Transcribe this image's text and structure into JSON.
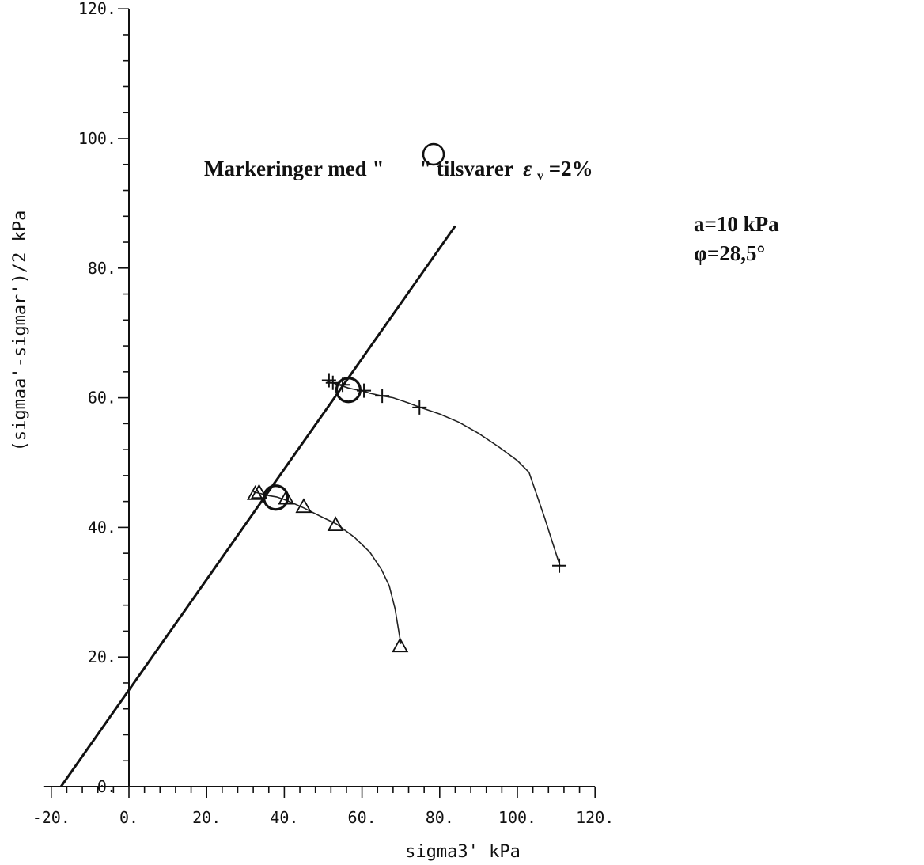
{
  "chart_data": {
    "type": "line",
    "xlabel": "sigma3' kPa",
    "ylabel": "(sigmaa'-sigmar')/2 kPa",
    "xlim": [
      -20,
      120
    ],
    "ylim": [
      0,
      120
    ],
    "x_ticks": [
      -20,
      0,
      20,
      40,
      60,
      80,
      100,
      120
    ],
    "x_tick_labels": [
      "-20.",
      "0.",
      "20.",
      "40.",
      "60.",
      "80.",
      "100.",
      "120."
    ],
    "y_ticks": [
      0,
      20,
      40,
      60,
      80,
      100,
      120
    ],
    "y_tick_labels": [
      "0.",
      "20.",
      "40.",
      "60.",
      "80.",
      "100.",
      "120."
    ],
    "grid": false,
    "annotations": {
      "marker_note_prefix": "Markeringer med \"",
      "marker_note_suffix": "\" tilsvarer",
      "strain_symbol": "ε",
      "strain_subscript": "v",
      "strain_value": "=2%",
      "attraction": "a=10 kPa",
      "friction_angle": "φ=28,5°"
    },
    "failure_line": {
      "a_kPa": 10,
      "phi_deg": 28.5,
      "points": [
        [
          -17.5,
          0
        ],
        [
          84,
          86.5
        ]
      ]
    },
    "series": [
      {
        "marker": "+",
        "points": [
          [
            51,
            62.5
          ],
          [
            53,
            62.2
          ],
          [
            55,
            61.8
          ],
          [
            56.5,
            61.5
          ],
          [
            58,
            61.3
          ],
          [
            60.5,
            61.0
          ],
          [
            62,
            60.7
          ],
          [
            65,
            60.3
          ],
          [
            68,
            60.0
          ],
          [
            72,
            59.2
          ],
          [
            75,
            58.5
          ],
          [
            80,
            57.5
          ],
          [
            85,
            56.2
          ],
          [
            90,
            54.5
          ],
          [
            95,
            52.5
          ],
          [
            100,
            50.3
          ],
          [
            103,
            48.5
          ],
          [
            107,
            41.5
          ],
          [
            111,
            34
          ]
        ],
        "marker_points": [
          [
            51.5,
            62.7
          ],
          [
            52.5,
            62.3
          ],
          [
            55,
            62.0
          ],
          [
            60.5,
            61.1
          ],
          [
            65.2,
            60.3
          ],
          [
            74.8,
            58.5
          ],
          [
            110.8,
            34.1
          ]
        ],
        "strain_2pct_point": [
          56.5,
          61.2
        ]
      },
      {
        "marker": "triangle",
        "points": [
          [
            32,
            45.5
          ],
          [
            34,
            45.2
          ],
          [
            36,
            44.9
          ],
          [
            38,
            44.7
          ],
          [
            40,
            44.3
          ],
          [
            42,
            43.8
          ],
          [
            45,
            43.0
          ],
          [
            50,
            41.5
          ],
          [
            53.5,
            40.5
          ],
          [
            58,
            38.5
          ],
          [
            62,
            36.2
          ],
          [
            65,
            33.5
          ],
          [
            67,
            31.0
          ],
          [
            68.5,
            27.5
          ],
          [
            70,
            22
          ]
        ],
        "marker_points": [
          [
            32.5,
            45.2
          ],
          [
            33.5,
            45.4
          ],
          [
            40.5,
            44.5
          ],
          [
            45,
            43.2
          ],
          [
            53.2,
            40.4
          ],
          [
            69.8,
            21.7
          ]
        ],
        "strain_2pct_point": [
          37.8,
          44.6
        ]
      }
    ]
  }
}
